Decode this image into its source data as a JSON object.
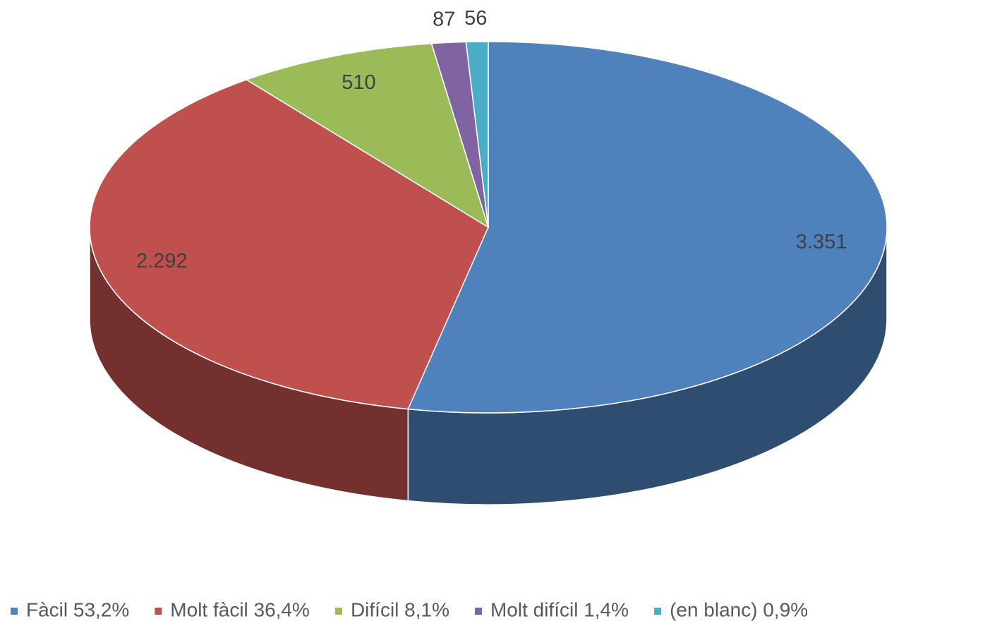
{
  "chart_data": {
    "type": "pie3d",
    "categories": [
      "Fàcil 53,2%",
      "Molt fàcil 36,4%",
      "Difícil 8,1%",
      "Molt difícil 1,4%",
      "(en blanc) 0,9%"
    ],
    "values": [
      3351,
      2292,
      510,
      87,
      56
    ],
    "value_labels": [
      "3.351",
      "2.292",
      "510",
      "87",
      "56"
    ],
    "colors": [
      "#4f81bd",
      "#c0504d",
      "#9bbb59",
      "#8064a2",
      "#4bacc6"
    ],
    "legend": "bottom"
  }
}
